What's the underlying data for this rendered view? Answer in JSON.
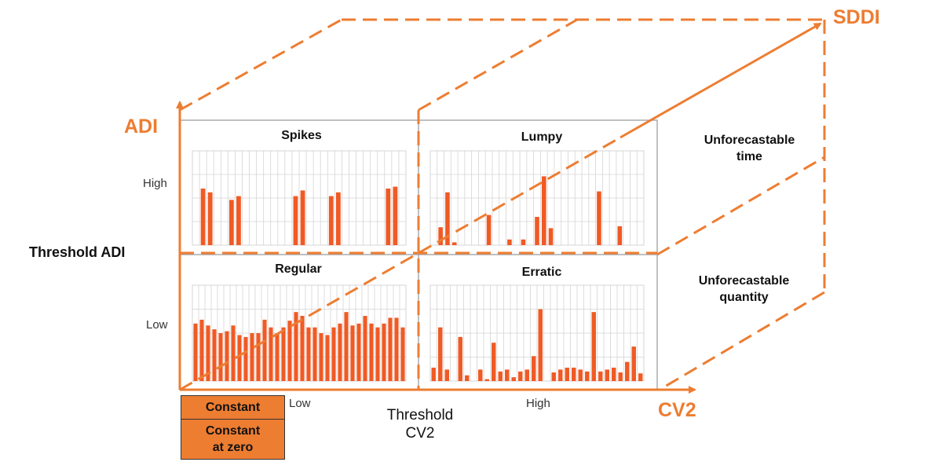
{
  "axes": {
    "adi": "ADI",
    "cv2": "CV2",
    "sddi": "SDDI"
  },
  "thresholds": {
    "adi": "Threshold ADI",
    "cv2_line1": "Threshold",
    "cv2_line2": "CV2"
  },
  "ticks": {
    "adi_high": "High",
    "adi_low": "Low",
    "cv2_low": "Low",
    "cv2_high": "High"
  },
  "side_labels": {
    "time_line1": "Unforecastable",
    "time_line2": "time",
    "qty_line1": "Unforecastable",
    "qty_line2": "quantity"
  },
  "boxes": {
    "constant": "Constant",
    "zero_line1": "Constant",
    "zero_line2": "at zero"
  },
  "colors": {
    "accent": "#ED7D31",
    "bar": "#F05A24",
    "grid": "#D4D4D4"
  },
  "chart_data": [
    {
      "type": "bar",
      "title": "Spikes",
      "values": [
        0,
        0.6,
        0.56,
        0,
        0,
        0.48,
        0.52,
        0,
        0,
        0,
        0,
        0,
        0,
        0,
        0.52,
        0.58,
        0,
        0,
        0,
        0.52,
        0.56,
        0,
        0,
        0,
        0,
        0,
        0,
        0.6,
        0.62,
        0
      ]
    },
    {
      "type": "bar",
      "title": "Lumpy",
      "values": [
        0,
        0.19,
        0.56,
        0.03,
        0,
        0,
        0,
        0,
        0.32,
        0,
        0,
        0.06,
        0,
        0.06,
        0,
        0.3,
        0.73,
        0.18,
        0,
        0,
        0,
        0,
        0,
        0,
        0.57,
        0,
        0,
        0.2,
        0,
        0,
        0
      ]
    },
    {
      "type": "bar",
      "title": "Regular",
      "values": [
        0.6,
        0.64,
        0.58,
        0.54,
        0.5,
        0.52,
        0.58,
        0.48,
        0.46,
        0.5,
        0.5,
        0.64,
        0.56,
        0.5,
        0.56,
        0.63,
        0.72,
        0.68,
        0.56,
        0.56,
        0.5,
        0.48,
        0.56,
        0.6,
        0.72,
        0.58,
        0.6,
        0.68,
        0.6,
        0.56,
        0.6,
        0.66,
        0.66,
        0.56
      ]
    },
    {
      "type": "bar",
      "title": "Erratic",
      "values": [
        0.14,
        0.56,
        0.12,
        0,
        0.46,
        0.06,
        0,
        0.12,
        0.02,
        0.4,
        0.1,
        0.12,
        0.04,
        0.1,
        0.12,
        0.26,
        0.75,
        0,
        0.09,
        0.12,
        0.14,
        0.14,
        0.12,
        0.1,
        0.72,
        0.1,
        0.12,
        0.14,
        0.09,
        0.2,
        0.36,
        0.08
      ]
    }
  ]
}
